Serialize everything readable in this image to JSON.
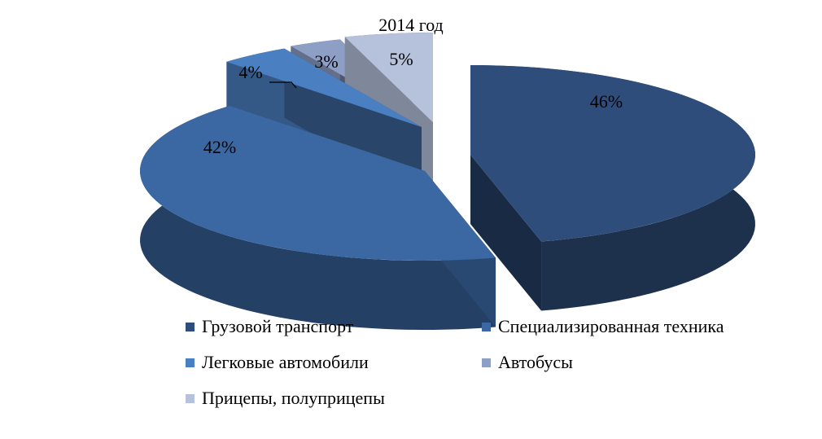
{
  "chart_data": {
    "type": "pie",
    "title": "2014 год",
    "slices": [
      {
        "name": "Грузовой транспорт",
        "value": 46,
        "label": "46%",
        "color": "#2e4d7b"
      },
      {
        "name": "Специализированная техника",
        "value": 42,
        "label": "42%",
        "color": "#3b68a3"
      },
      {
        "name": "Легковые автомобили",
        "value": 4,
        "label": "4%",
        "color": "#4a7fc1"
      },
      {
        "name": "Автобусы",
        "value": 3,
        "label": "3%",
        "color": "#8e9fc6"
      },
      {
        "name": "Прицепы, полуприцепы",
        "value": 5,
        "label": "5%",
        "color": "#b6c1dc"
      }
    ],
    "legend_position": "bottom",
    "style": "3d-exploded"
  }
}
